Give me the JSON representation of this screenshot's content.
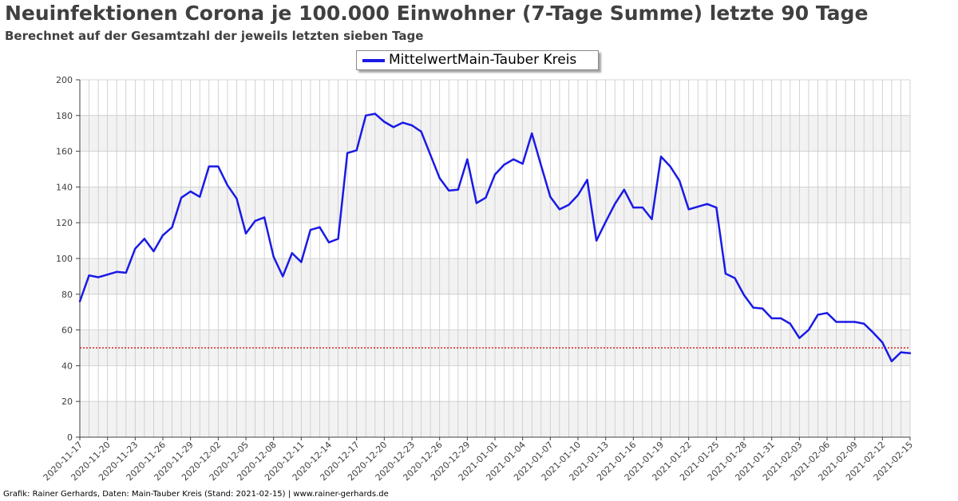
{
  "title": "Neuinfektionen Corona je 100.000 Einwohner (7-Tage Summe) letzte 90 Tage",
  "subtitle": "Berechnet auf der Gesamtzahl der jeweils letzten sieben Tage",
  "footer": "Grafik: Rainer Gerhards, Daten: Main-Tauber Kreis (Stand: 2021-02-15) | www.rainer-gerhards.de",
  "colors": {
    "line": "#1a1ae6",
    "threshold": "#cc0000",
    "band": "#f2f2f2",
    "grid": "#c8c8c8"
  },
  "chart_data": {
    "type": "line",
    "title": "Neuinfektionen Corona je 100.000 Einwohner (7-Tage Summe) letzte 90 Tage",
    "subtitle": "Berechnet auf der Gesamtzahl der jeweils letzten sieben Tage",
    "xlabel": "",
    "ylabel": "",
    "ylim": [
      0,
      200
    ],
    "yticks": [
      0,
      20,
      40,
      60,
      80,
      100,
      120,
      140,
      160,
      180,
      200
    ],
    "x_start": "2020-11-17",
    "x_end": "2021-02-15",
    "xtick_labels": [
      "2020-11-17",
      "2020-11-20",
      "2020-11-23",
      "2020-11-26",
      "2020-11-29",
      "2020-12-02",
      "2020-12-05",
      "2020-12-08",
      "2020-12-11",
      "2020-12-14",
      "2020-12-17",
      "2020-12-20",
      "2020-12-23",
      "2020-12-26",
      "2020-12-29",
      "2021-01-01",
      "2021-01-04",
      "2021-01-07",
      "2021-01-10",
      "2021-01-13",
      "2021-01-16",
      "2021-01-19",
      "2021-01-22",
      "2021-01-25",
      "2021-01-28",
      "2021-01-31",
      "2021-02-03",
      "2021-02-06",
      "2021-02-09",
      "2021-02-12",
      "2021-02-15"
    ],
    "grid": true,
    "legend_position": "top-center",
    "threshold": 50,
    "series": [
      {
        "name": "MittelwertMain-Tauber Kreis",
        "values": [
          76,
          90.5,
          89.5,
          91,
          92.5,
          92,
          105.5,
          111,
          104,
          113,
          117.5,
          134,
          137.5,
          134.5,
          151.5,
          151.5,
          141,
          133.5,
          114,
          121,
          123,
          101,
          90,
          103,
          98,
          116,
          117.5,
          109,
          111,
          159,
          160.5,
          180,
          181,
          176.5,
          173.5,
          176,
          174.5,
          171,
          158,
          145,
          138,
          138.5,
          155.5,
          131,
          134,
          147,
          152.5,
          155.5,
          153,
          170,
          152,
          134.5,
          127.5,
          130,
          135.5,
          144,
          110,
          120.5,
          130.5,
          138.5,
          128.5,
          128.5,
          122,
          157,
          151.5,
          143.5,
          127.5,
          129,
          130.5,
          128.5,
          91.5,
          89,
          79.5,
          72.5,
          72,
          66.5,
          66.5,
          63.5,
          55.5,
          60,
          68.5,
          69.5,
          64.5,
          64.5,
          64.5,
          63.5,
          58.5,
          53,
          42.5,
          47.5,
          47
        ]
      }
    ]
  }
}
